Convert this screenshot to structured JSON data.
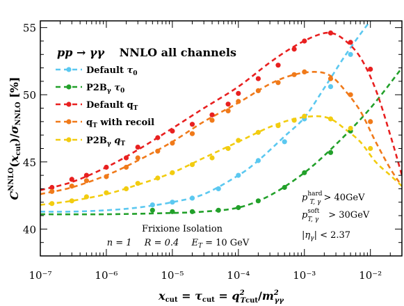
{
  "chart_data": {
    "type": "line",
    "title": "pp → γγ",
    "subtitle": "NNLO all channels",
    "xlabel": "x_cut = τ_cut = q²_Tcut / m²_γγ",
    "ylabel": "C^NNLO(x_cut) / σ_NNLO [%]",
    "x_scale": "log",
    "xlim": [
      1e-07,
      0.03
    ],
    "ylim": [
      38,
      55.5
    ],
    "grid": false,
    "legend_position": "top-left",
    "x_tick_labels": [
      "10⁻⁷",
      "10⁻⁶",
      "10⁻⁵",
      "10⁻⁴",
      "10⁻³",
      "10⁻²"
    ],
    "y_tick_labels": [
      "40",
      "45",
      "50",
      "55"
    ],
    "y_ticks": [
      40,
      45,
      50,
      55
    ],
    "series": [
      {
        "name": "Default τ₀",
        "color": "#5bc8f0",
        "points_x": [
          5e-06,
          1e-05,
          2e-05,
          5e-05,
          0.0001,
          0.0002,
          0.0005,
          0.001,
          0.0025,
          0.005
        ],
        "points_y": [
          41.8,
          42.0,
          42.3,
          43.0,
          44.0,
          45.1,
          46.5,
          48.2,
          50.6,
          53.0
        ],
        "curve_x": [
          1e-07,
          3e-07,
          1e-06,
          3e-06,
          1e-05,
          3e-05,
          0.0001,
          0.0002,
          0.0005,
          0.001,
          0.002,
          0.004,
          0.007,
          0.01
        ],
        "curve_y": [
          41.3,
          41.3,
          41.4,
          41.6,
          42.0,
          42.6,
          44.0,
          45.1,
          46.9,
          48.3,
          50.5,
          52.8,
          54.5,
          55.5
        ]
      },
      {
        "name": "P2B_γ τ₀",
        "color": "#22a02a",
        "points_x": [
          5e-06,
          1e-05,
          2e-05,
          5e-05,
          0.0001,
          0.0002,
          0.0005,
          0.001,
          0.0025,
          0.005
        ],
        "points_y": [
          41.4,
          41.3,
          41.3,
          41.4,
          41.6,
          42.1,
          43.1,
          44.2,
          45.7,
          47.3
        ],
        "curve_x": [
          1e-07,
          1e-06,
          1e-05,
          3e-05,
          0.0001,
          0.0003,
          0.001,
          0.003,
          0.01,
          0.03
        ],
        "curve_y": [
          41.1,
          41.1,
          41.2,
          41.3,
          41.6,
          42.5,
          44.2,
          46.3,
          49.0,
          52.0
        ]
      },
      {
        "name": "Default q_T",
        "color": "#e82020",
        "points_x": [
          1.5e-07,
          3e-07,
          5e-07,
          1e-06,
          2e-06,
          3e-06,
          6e-06,
          1e-05,
          2e-05,
          4e-05,
          7e-05,
          0.0001,
          0.0002,
          0.0004,
          0.0007,
          0.001,
          0.0025,
          0.005,
          0.01
        ],
        "points_y": [
          43.1,
          43.7,
          44.0,
          44.6,
          45.3,
          46.1,
          46.8,
          47.3,
          47.8,
          48.5,
          49.3,
          50.1,
          51.2,
          52.2,
          53.4,
          54.0,
          54.6,
          53.9,
          51.9
        ],
        "curve_x": [
          1e-07,
          3e-07,
          1e-06,
          3e-06,
          1e-05,
          3e-05,
          0.0001,
          0.0003,
          0.0007,
          0.0015,
          0.0025,
          0.004,
          0.007,
          0.012,
          0.02,
          0.03
        ],
        "curve_y": [
          42.9,
          43.5,
          44.6,
          45.9,
          47.5,
          49.0,
          50.6,
          52.4,
          53.6,
          54.4,
          54.6,
          54.1,
          52.8,
          50.4,
          47.0,
          44.0
        ]
      },
      {
        "name": "q_T with recoil",
        "color": "#f07a1a",
        "points_x": [
          1.5e-07,
          3e-07,
          5e-07,
          1e-06,
          2e-06,
          3e-06,
          6e-06,
          1e-05,
          2e-05,
          4e-05,
          7e-05,
          0.0001,
          0.0002,
          0.0004,
          0.0007,
          0.001,
          0.0025,
          0.005,
          0.01
        ],
        "points_y": [
          42.8,
          43.2,
          43.6,
          43.9,
          44.6,
          45.3,
          45.8,
          46.4,
          47.1,
          48.1,
          48.8,
          49.5,
          50.3,
          50.9,
          51.5,
          51.7,
          51.2,
          50.0,
          48.0
        ],
        "curve_x": [
          1e-07,
          3e-07,
          1e-06,
          3e-06,
          1e-05,
          3e-05,
          0.0001,
          0.0003,
          0.0007,
          0.0015,
          0.0025,
          0.004,
          0.007,
          0.012,
          0.02,
          0.03
        ],
        "curve_y": [
          42.6,
          43.1,
          44.0,
          45.1,
          46.5,
          48.0,
          49.4,
          50.8,
          51.5,
          51.7,
          51.4,
          50.4,
          48.8,
          46.5,
          44.5,
          43.2
        ]
      },
      {
        "name": "P2B_γ q_T",
        "color": "#f2cc10",
        "points_x": [
          1.5e-07,
          3e-07,
          5e-07,
          1e-06,
          2e-06,
          3e-06,
          6e-06,
          1e-05,
          2e-05,
          4e-05,
          7e-05,
          0.0001,
          0.0002,
          0.0004,
          0.0007,
          0.001,
          0.0025,
          0.005,
          0.01
        ],
        "points_y": [
          41.9,
          42.1,
          42.4,
          42.7,
          43.0,
          43.4,
          43.8,
          44.2,
          44.8,
          45.3,
          46.0,
          46.6,
          47.2,
          47.7,
          48.1,
          48.4,
          48.2,
          47.5,
          46.0
        ],
        "curve_x": [
          1e-07,
          3e-07,
          1e-06,
          3e-06,
          1e-05,
          3e-05,
          0.0001,
          0.0003,
          0.0007,
          0.0015,
          0.0025,
          0.004,
          0.007,
          0.012,
          0.02,
          0.03
        ],
        "curve_y": [
          41.8,
          42.1,
          42.6,
          43.3,
          44.2,
          45.3,
          46.5,
          47.6,
          48.2,
          48.4,
          48.2,
          47.5,
          46.5,
          45.0,
          44.0,
          43.2
        ]
      }
    ],
    "legend": [
      {
        "label": "Default ",
        "sym": "τ",
        "sub": "0"
      },
      {
        "label": "P2B",
        "sym": " τ",
        "sub": "0",
        "gsub": "γ"
      },
      {
        "label": "Default q",
        "sub": "T"
      },
      {
        "label": "q",
        "sub": "T",
        "tail": " with recoil"
      },
      {
        "label": "P2B",
        "gsub": "γ",
        "label2": " q",
        "sub": "T"
      }
    ],
    "annotations": {
      "isolation": "Frixione Isolation",
      "params": "n = 1   R = 0.4   E_T = 10 GeV",
      "params_parts": [
        "n = 1",
        "R = 0.4",
        "E",
        "T",
        " = 10 GeV"
      ],
      "cut1": [
        "p",
        "hard",
        "T, γ",
        " > 40GeV"
      ],
      "cut2": [
        "p",
        "soft",
        "T, γ",
        " > 30GeV"
      ],
      "cut3": "|η_γ| < 2.37",
      "cut3_parts": [
        "|η",
        "γ",
        "| < 2.37"
      ]
    }
  }
}
